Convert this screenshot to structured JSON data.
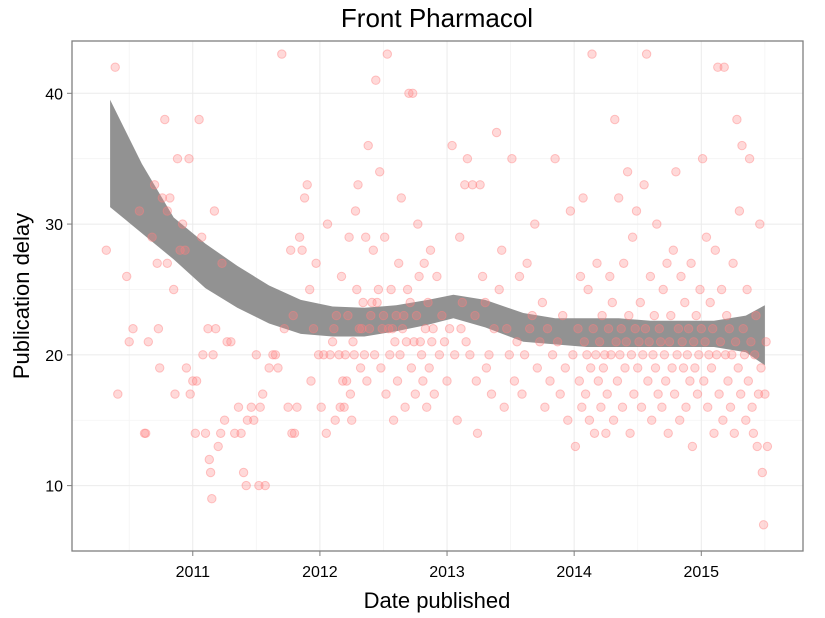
{
  "chart_data": {
    "type": "scatter",
    "title": "Front Pharmacol",
    "xlabel": "Date published",
    "ylabel": "Publication delay",
    "x_ticks": [
      2011,
      2012,
      2013,
      2014,
      2015
    ],
    "y_ticks": [
      10,
      20,
      30,
      40
    ],
    "xlim": [
      2010.05,
      2015.8
    ],
    "ylim": [
      5.0,
      44.0
    ],
    "grid": true,
    "point_color": "#ff8080",
    "band_color": "#8c8c8c",
    "smooth_band": {
      "x": [
        2010.35,
        2010.6,
        2010.85,
        2011.1,
        2011.35,
        2011.6,
        2011.85,
        2012.1,
        2012.35,
        2012.6,
        2012.85,
        2013.05,
        2013.3,
        2013.6,
        2013.85,
        2014.1,
        2014.35,
        2014.6,
        2014.85,
        2015.1,
        2015.35,
        2015.5
      ],
      "upper": [
        39.5,
        34.6,
        30.5,
        28.5,
        26.8,
        25.3,
        24.2,
        23.7,
        23.6,
        23.8,
        24.2,
        24.6,
        24.2,
        23.2,
        22.8,
        22.8,
        22.8,
        22.6,
        22.6,
        22.6,
        23.0,
        23.8
      ],
      "lower": [
        31.3,
        29.3,
        27.3,
        25.1,
        23.6,
        22.4,
        21.6,
        21.4,
        21.4,
        21.8,
        22.3,
        22.8,
        22.1,
        21.0,
        20.8,
        20.6,
        20.6,
        20.6,
        20.6,
        20.6,
        20.2,
        19.2
      ]
    },
    "points": [
      [
        2010.32,
        28
      ],
      [
        2010.39,
        42
      ],
      [
        2010.41,
        17
      ],
      [
        2010.48,
        26
      ],
      [
        2010.5,
        21
      ],
      [
        2010.53,
        22
      ],
      [
        2010.58,
        31
      ],
      [
        2010.62,
        14
      ],
      [
        2010.63,
        14
      ],
      [
        2010.65,
        21
      ],
      [
        2010.68,
        29
      ],
      [
        2010.7,
        33
      ],
      [
        2010.72,
        27
      ],
      [
        2010.73,
        22
      ],
      [
        2010.74,
        19
      ],
      [
        2010.76,
        32
      ],
      [
        2010.78,
        38
      ],
      [
        2010.8,
        27
      ],
      [
        2010.8,
        31
      ],
      [
        2010.82,
        32
      ],
      [
        2010.85,
        25
      ],
      [
        2010.86,
        17
      ],
      [
        2010.88,
        35
      ],
      [
        2010.9,
        28
      ],
      [
        2010.92,
        30
      ],
      [
        2010.94,
        28
      ],
      [
        2010.95,
        19
      ],
      [
        2010.97,
        35
      ],
      [
        2010.98,
        17
      ],
      [
        2011.0,
        18
      ],
      [
        2011.02,
        14
      ],
      [
        2011.03,
        18
      ],
      [
        2011.05,
        38
      ],
      [
        2011.07,
        29
      ],
      [
        2011.08,
        20
      ],
      [
        2011.1,
        14
      ],
      [
        2011.12,
        22
      ],
      [
        2011.13,
        12
      ],
      [
        2011.14,
        11
      ],
      [
        2011.15,
        9
      ],
      [
        2011.16,
        20
      ],
      [
        2011.17,
        31
      ],
      [
        2011.18,
        22
      ],
      [
        2011.2,
        13
      ],
      [
        2011.22,
        14
      ],
      [
        2011.23,
        27
      ],
      [
        2011.25,
        15
      ],
      [
        2011.27,
        21
      ],
      [
        2011.3,
        21
      ],
      [
        2011.33,
        14
      ],
      [
        2011.36,
        16
      ],
      [
        2011.38,
        14
      ],
      [
        2011.4,
        11
      ],
      [
        2011.42,
        10
      ],
      [
        2011.43,
        15
      ],
      [
        2011.46,
        16
      ],
      [
        2011.48,
        15
      ],
      [
        2011.5,
        20
      ],
      [
        2011.52,
        10
      ],
      [
        2011.53,
        16
      ],
      [
        2011.55,
        17
      ],
      [
        2011.57,
        10
      ],
      [
        2011.6,
        19
      ],
      [
        2011.63,
        20
      ],
      [
        2011.65,
        20
      ],
      [
        2011.67,
        19
      ],
      [
        2011.7,
        43
      ],
      [
        2011.72,
        22
      ],
      [
        2011.75,
        16
      ],
      [
        2011.77,
        28
      ],
      [
        2011.78,
        14
      ],
      [
        2011.79,
        23
      ],
      [
        2011.8,
        14
      ],
      [
        2011.82,
        16
      ],
      [
        2011.84,
        29
      ],
      [
        2011.86,
        28
      ],
      [
        2011.88,
        32
      ],
      [
        2011.9,
        33
      ],
      [
        2011.92,
        25
      ],
      [
        2011.93,
        18
      ],
      [
        2011.95,
        22
      ],
      [
        2011.97,
        27
      ],
      [
        2011.99,
        20
      ],
      [
        2012.01,
        16
      ],
      [
        2012.03,
        20
      ],
      [
        2012.05,
        14
      ],
      [
        2012.06,
        30
      ],
      [
        2012.08,
        20
      ],
      [
        2012.1,
        21
      ],
      [
        2012.11,
        22
      ],
      [
        2012.12,
        15
      ],
      [
        2012.13,
        23
      ],
      [
        2012.15,
        20
      ],
      [
        2012.16,
        16
      ],
      [
        2012.17,
        26
      ],
      [
        2012.18,
        18
      ],
      [
        2012.19,
        16
      ],
      [
        2012.2,
        20
      ],
      [
        2012.21,
        18
      ],
      [
        2012.22,
        23
      ],
      [
        2012.23,
        29
      ],
      [
        2012.24,
        17
      ],
      [
        2012.25,
        15
      ],
      [
        2012.26,
        21
      ],
      [
        2012.27,
        20
      ],
      [
        2012.28,
        31
      ],
      [
        2012.29,
        25
      ],
      [
        2012.3,
        33
      ],
      [
        2012.31,
        22
      ],
      [
        2012.32,
        19
      ],
      [
        2012.33,
        22
      ],
      [
        2012.34,
        24
      ],
      [
        2012.35,
        20
      ],
      [
        2012.36,
        29
      ],
      [
        2012.37,
        18
      ],
      [
        2012.38,
        36
      ],
      [
        2012.39,
        22
      ],
      [
        2012.4,
        23
      ],
      [
        2012.41,
        24
      ],
      [
        2012.42,
        28
      ],
      [
        2012.43,
        20
      ],
      [
        2012.44,
        41
      ],
      [
        2012.45,
        24
      ],
      [
        2012.46,
        25
      ],
      [
        2012.47,
        34
      ],
      [
        2012.48,
        19
      ],
      [
        2012.49,
        22
      ],
      [
        2012.5,
        23
      ],
      [
        2012.51,
        29
      ],
      [
        2012.52,
        17
      ],
      [
        2012.53,
        43
      ],
      [
        2012.54,
        22
      ],
      [
        2012.55,
        20
      ],
      [
        2012.56,
        25
      ],
      [
        2012.57,
        22
      ],
      [
        2012.58,
        15
      ],
      [
        2012.59,
        21
      ],
      [
        2012.6,
        23
      ],
      [
        2012.61,
        18
      ],
      [
        2012.62,
        27
      ],
      [
        2012.63,
        20
      ],
      [
        2012.64,
        32
      ],
      [
        2012.65,
        22
      ],
      [
        2012.66,
        23
      ],
      [
        2012.67,
        16
      ],
      [
        2012.68,
        21
      ],
      [
        2012.69,
        25
      ],
      [
        2012.7,
        40
      ],
      [
        2012.71,
        24
      ],
      [
        2012.72,
        19
      ],
      [
        2012.73,
        40
      ],
      [
        2012.74,
        21
      ],
      [
        2012.75,
        17
      ],
      [
        2012.76,
        23
      ],
      [
        2012.77,
        30
      ],
      [
        2012.78,
        26
      ],
      [
        2012.79,
        21
      ],
      [
        2012.8,
        20
      ],
      [
        2012.81,
        18
      ],
      [
        2012.82,
        27
      ],
      [
        2012.83,
        22
      ],
      [
        2012.84,
        16
      ],
      [
        2012.85,
        24
      ],
      [
        2012.86,
        19
      ],
      [
        2012.87,
        28
      ],
      [
        2012.88,
        21
      ],
      [
        2012.89,
        22
      ],
      [
        2012.9,
        17
      ],
      [
        2012.92,
        26
      ],
      [
        2012.94,
        20
      ],
      [
        2012.96,
        23
      ],
      [
        2012.98,
        21
      ],
      [
        2013.0,
        18
      ],
      [
        2013.02,
        22
      ],
      [
        2013.04,
        36
      ],
      [
        2013.06,
        20
      ],
      [
        2013.08,
        15
      ],
      [
        2013.1,
        29
      ],
      [
        2013.11,
        22
      ],
      [
        2013.12,
        24
      ],
      [
        2013.14,
        33
      ],
      [
        2013.15,
        21
      ],
      [
        2013.16,
        35
      ],
      [
        2013.18,
        20
      ],
      [
        2013.2,
        33
      ],
      [
        2013.22,
        23
      ],
      [
        2013.23,
        18
      ],
      [
        2013.24,
        14
      ],
      [
        2013.26,
        33
      ],
      [
        2013.28,
        26
      ],
      [
        2013.3,
        24
      ],
      [
        2013.31,
        19
      ],
      [
        2013.33,
        20
      ],
      [
        2013.35,
        17
      ],
      [
        2013.37,
        22
      ],
      [
        2013.39,
        37
      ],
      [
        2013.41,
        25
      ],
      [
        2013.43,
        28
      ],
      [
        2013.45,
        16
      ],
      [
        2013.47,
        22
      ],
      [
        2013.49,
        20
      ],
      [
        2013.51,
        35
      ],
      [
        2013.53,
        18
      ],
      [
        2013.55,
        21
      ],
      [
        2013.57,
        26
      ],
      [
        2013.59,
        17
      ],
      [
        2013.61,
        20
      ],
      [
        2013.63,
        27
      ],
      [
        2013.65,
        22
      ],
      [
        2013.67,
        23
      ],
      [
        2013.69,
        30
      ],
      [
        2013.71,
        19
      ],
      [
        2013.73,
        21
      ],
      [
        2013.75,
        24
      ],
      [
        2013.77,
        16
      ],
      [
        2013.79,
        22
      ],
      [
        2013.81,
        18
      ],
      [
        2013.83,
        20
      ],
      [
        2013.85,
        35
      ],
      [
        2013.87,
        21
      ],
      [
        2013.89,
        17
      ],
      [
        2013.91,
        23
      ],
      [
        2013.93,
        19
      ],
      [
        2013.95,
        15
      ],
      [
        2013.97,
        31
      ],
      [
        2013.99,
        20
      ],
      [
        2014.01,
        13
      ],
      [
        2014.03,
        22
      ],
      [
        2014.04,
        18
      ],
      [
        2014.05,
        26
      ],
      [
        2014.06,
        16
      ],
      [
        2014.07,
        32
      ],
      [
        2014.08,
        21
      ],
      [
        2014.09,
        17
      ],
      [
        2014.1,
        20
      ],
      [
        2014.11,
        25
      ],
      [
        2014.12,
        15
      ],
      [
        2014.13,
        19
      ],
      [
        2014.14,
        43
      ],
      [
        2014.15,
        22
      ],
      [
        2014.16,
        14
      ],
      [
        2014.17,
        20
      ],
      [
        2014.18,
        27
      ],
      [
        2014.19,
        18
      ],
      [
        2014.2,
        21
      ],
      [
        2014.21,
        16
      ],
      [
        2014.22,
        23
      ],
      [
        2014.23,
        19
      ],
      [
        2014.24,
        20
      ],
      [
        2014.25,
        14
      ],
      [
        2014.26,
        17
      ],
      [
        2014.27,
        22
      ],
      [
        2014.28,
        26
      ],
      [
        2014.29,
        20
      ],
      [
        2014.3,
        24
      ],
      [
        2014.31,
        15
      ],
      [
        2014.32,
        38
      ],
      [
        2014.33,
        21
      ],
      [
        2014.34,
        18
      ],
      [
        2014.35,
        32
      ],
      [
        2014.36,
        20
      ],
      [
        2014.37,
        22
      ],
      [
        2014.38,
        16
      ],
      [
        2014.39,
        27
      ],
      [
        2014.4,
        19
      ],
      [
        2014.41,
        21
      ],
      [
        2014.42,
        34
      ],
      [
        2014.43,
        23
      ],
      [
        2014.44,
        14
      ],
      [
        2014.45,
        20
      ],
      [
        2014.46,
        29
      ],
      [
        2014.47,
        17
      ],
      [
        2014.48,
        22
      ],
      [
        2014.49,
        31
      ],
      [
        2014.5,
        19
      ],
      [
        2014.51,
        21
      ],
      [
        2014.52,
        24
      ],
      [
        2014.53,
        16
      ],
      [
        2014.54,
        20
      ],
      [
        2014.55,
        33
      ],
      [
        2014.56,
        22
      ],
      [
        2014.57,
        43
      ],
      [
        2014.58,
        18
      ],
      [
        2014.59,
        21
      ],
      [
        2014.6,
        26
      ],
      [
        2014.61,
        15
      ],
      [
        2014.62,
        20
      ],
      [
        2014.63,
        23
      ],
      [
        2014.64,
        19
      ],
      [
        2014.65,
        30
      ],
      [
        2014.66,
        17
      ],
      [
        2014.67,
        22
      ],
      [
        2014.68,
        21
      ],
      [
        2014.69,
        16
      ],
      [
        2014.7,
        25
      ],
      [
        2014.71,
        20
      ],
      [
        2014.72,
        18
      ],
      [
        2014.73,
        27
      ],
      [
        2014.74,
        14
      ],
      [
        2014.75,
        21
      ],
      [
        2014.76,
        23
      ],
      [
        2014.77,
        19
      ],
      [
        2014.78,
        28
      ],
      [
        2014.79,
        17
      ],
      [
        2014.8,
        34
      ],
      [
        2014.81,
        20
      ],
      [
        2014.82,
        22
      ],
      [
        2014.83,
        15
      ],
      [
        2014.84,
        26
      ],
      [
        2014.85,
        21
      ],
      [
        2014.86,
        19
      ],
      [
        2014.87,
        24
      ],
      [
        2014.88,
        16
      ],
      [
        2014.89,
        20
      ],
      [
        2014.9,
        22
      ],
      [
        2014.91,
        18
      ],
      [
        2014.92,
        27
      ],
      [
        2014.93,
        13
      ],
      [
        2014.94,
        21
      ],
      [
        2014.95,
        19
      ],
      [
        2014.96,
        23
      ],
      [
        2014.97,
        17
      ],
      [
        2014.98,
        20
      ],
      [
        2014.99,
        25
      ],
      [
        2015.0,
        22
      ],
      [
        2015.01,
        35
      ],
      [
        2015.02,
        18
      ],
      [
        2015.03,
        21
      ],
      [
        2015.04,
        29
      ],
      [
        2015.05,
        16
      ],
      [
        2015.06,
        20
      ],
      [
        2015.07,
        24
      ],
      [
        2015.08,
        19
      ],
      [
        2015.09,
        22
      ],
      [
        2015.1,
        14
      ],
      [
        2015.11,
        28
      ],
      [
        2015.12,
        20
      ],
      [
        2015.13,
        42
      ],
      [
        2015.14,
        17
      ],
      [
        2015.15,
        21
      ],
      [
        2015.16,
        25
      ],
      [
        2015.17,
        15
      ],
      [
        2015.18,
        42
      ],
      [
        2015.19,
        20
      ],
      [
        2015.2,
        23
      ],
      [
        2015.21,
        18
      ],
      [
        2015.22,
        22
      ],
      [
        2015.23,
        16
      ],
      [
        2015.24,
        20
      ],
      [
        2015.25,
        27
      ],
      [
        2015.26,
        14
      ],
      [
        2015.27,
        21
      ],
      [
        2015.28,
        38
      ],
      [
        2015.29,
        19
      ],
      [
        2015.3,
        31
      ],
      [
        2015.31,
        17
      ],
      [
        2015.32,
        36
      ],
      [
        2015.33,
        22
      ],
      [
        2015.34,
        20
      ],
      [
        2015.35,
        15
      ],
      [
        2015.36,
        25
      ],
      [
        2015.37,
        18
      ],
      [
        2015.38,
        35
      ],
      [
        2015.39,
        21
      ],
      [
        2015.4,
        16
      ],
      [
        2015.41,
        14
      ],
      [
        2015.42,
        20
      ],
      [
        2015.43,
        23
      ],
      [
        2015.44,
        13
      ],
      [
        2015.45,
        17
      ],
      [
        2015.46,
        30
      ],
      [
        2015.47,
        19
      ],
      [
        2015.48,
        11
      ],
      [
        2015.49,
        7
      ],
      [
        2015.5,
        17
      ],
      [
        2015.51,
        21
      ],
      [
        2015.52,
        13
      ]
    ]
  }
}
